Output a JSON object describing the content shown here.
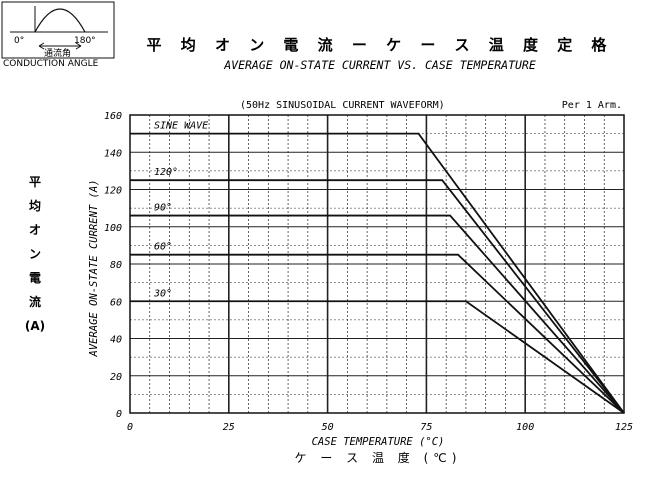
{
  "title_jp": "平 均 オ ン 電 流 ー ケ ー ス 温 度 定 格",
  "title_en": "AVERAGE ON-STATE CURRENT VS. CASE TEMPERATURE",
  "waveform_note": "(50Hz SINUSOIDAL CURRENT WAVEFORM)",
  "per_note": "Per 1 Arm.",
  "inset": {
    "left_angle": "0°",
    "right_angle": "180°",
    "label_jp": "通流角",
    "label_en": "CONDUCTION ANGLE"
  },
  "ylabel_jp": [
    "平",
    "均",
    "オ",
    "ン",
    "電",
    "流",
    "(A)"
  ],
  "chart_data": {
    "type": "line",
    "xlabel": "CASE TEMPERATURE (°C)",
    "xlabel_jp": "ケ ー ス 温 度  (℃)",
    "ylabel": "AVERAGE ON-STATE CURRENT (A)",
    "xlim": [
      0,
      125
    ],
    "ylim": [
      0,
      160
    ],
    "xticks": [
      0,
      25,
      50,
      75,
      100,
      125
    ],
    "yticks": [
      0,
      20,
      40,
      60,
      80,
      100,
      120,
      140,
      160
    ],
    "grid": true,
    "series": [
      {
        "name": "SINE WAVE",
        "x": [
          0,
          73,
          125
        ],
        "y": [
          150,
          150,
          0
        ]
      },
      {
        "name": "120°",
        "x": [
          0,
          79,
          125
        ],
        "y": [
          125,
          125,
          0
        ]
      },
      {
        "name": "90°",
        "x": [
          0,
          81,
          125
        ],
        "y": [
          106,
          106,
          0
        ]
      },
      {
        "name": "60°",
        "x": [
          0,
          83,
          125
        ],
        "y": [
          85,
          85,
          0
        ]
      },
      {
        "name": "30°",
        "x": [
          0,
          85,
          125
        ],
        "y": [
          60,
          60,
          0
        ]
      }
    ]
  }
}
